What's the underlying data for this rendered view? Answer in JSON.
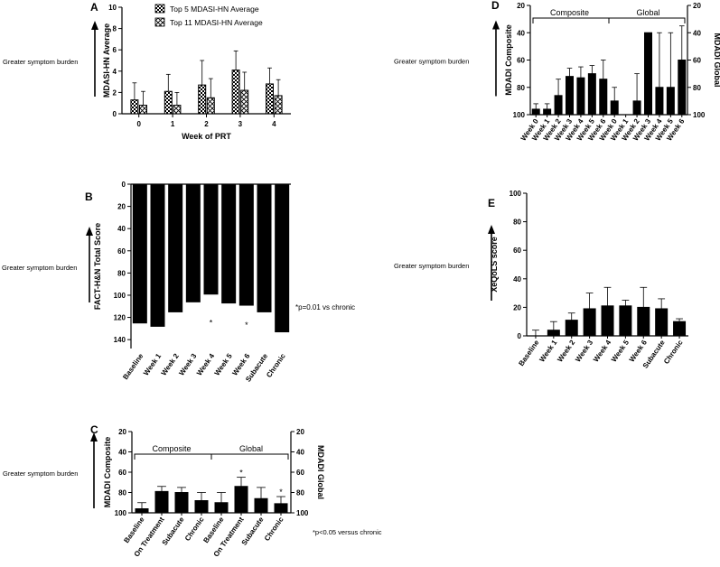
{
  "side_label": "Greater symptom burden",
  "chart_data": [
    {
      "id": "A",
      "type": "bar",
      "panel_letter": "A",
      "title": "",
      "xlabel": "Week of PRT",
      "ylabel": "MDASI-HN Average",
      "categories": [
        "0",
        "1",
        "2",
        "3",
        "4"
      ],
      "ylim": [
        0,
        10
      ],
      "yticks": [
        0,
        2,
        4,
        6,
        8,
        10
      ],
      "series": [
        {
          "name": "Top 5 MDASI-HN Average",
          "pattern": "checker",
          "values": [
            1.3,
            2.1,
            2.7,
            4.1,
            2.8
          ],
          "err": [
            1.6,
            1.6,
            2.3,
            1.8,
            1.5
          ]
        },
        {
          "name": "Top 11 MDASI-HN Average",
          "pattern": "xcross",
          "values": [
            0.8,
            0.8,
            1.5,
            2.2,
            1.7
          ],
          "err": [
            1.3,
            1.2,
            1.8,
            1.7,
            1.5
          ]
        }
      ],
      "legend": "top"
    },
    {
      "id": "B",
      "type": "bar",
      "panel_letter": "B",
      "ylabel": "FACT-H&N Total Score",
      "xlabel": "",
      "categories": [
        "Baseline",
        "Week 1",
        "Week 2",
        "Week 3",
        "Week 4",
        "Week 5",
        "Week 6",
        "Subacute",
        "Chronic"
      ],
      "values": [
        125,
        128,
        115,
        106,
        99,
        107,
        109,
        115,
        133
      ],
      "err": [
        11,
        4,
        20,
        17,
        21,
        19,
        13,
        11,
        4
      ],
      "ylim": [
        0,
        148
      ],
      "yticks": [
        0,
        20,
        40,
        60,
        80,
        100,
        120,
        140
      ],
      "inverted": true,
      "significant_marks": [
        "Week 4",
        "Week 6"
      ],
      "sig_symbol": "*",
      "annotation": "*p=0.01 vs chronic"
    },
    {
      "id": "C",
      "type": "bar",
      "panel_letter": "C",
      "ylabel": "MDADI Composite",
      "ylabel_right": "MDADI Global",
      "categories": [
        "Baseline",
        "On Treatment",
        "Subacute",
        "Chronic",
        "Baseline",
        "On Treatment",
        "Subacute",
        "Chronic"
      ],
      "values": [
        96,
        79,
        80,
        88,
        90,
        74,
        86,
        91
      ],
      "err": [
        6,
        5,
        5,
        8,
        10,
        9,
        11,
        7
      ],
      "ylim": [
        20,
        100
      ],
      "yticks": [
        20,
        40,
        60,
        80,
        100
      ],
      "inverted": true,
      "group_labels": [
        "Composite",
        "Global"
      ],
      "significant_marks": [
        5,
        7
      ],
      "sig_symbol": "*",
      "annotation": "*p<0.05 versus chronic"
    },
    {
      "id": "D",
      "type": "bar",
      "panel_letter": "D",
      "ylabel": "MDADI Composite",
      "ylabel_right": "MDADI Global",
      "categories": [
        "Week 0",
        "Week 1",
        "Week 2",
        "Week 3",
        "Week 4",
        "Week 5",
        "Week 6",
        "Week 0",
        "Week 1",
        "Week 2",
        "Week 3",
        "Week 4",
        "Week 5",
        "Week 6"
      ],
      "values": [
        96,
        96,
        86,
        72,
        73,
        70,
        74,
        90,
        100,
        90,
        40,
        80,
        80,
        60
      ],
      "err": [
        4,
        4,
        12,
        6,
        8,
        6,
        14,
        10,
        0,
        20,
        0,
        40,
        40,
        25
      ],
      "ylim": [
        20,
        100
      ],
      "yticks": [
        20,
        40,
        60,
        80,
        100
      ],
      "inverted": true,
      "group_labels": [
        "Composite",
        "Global"
      ]
    },
    {
      "id": "E",
      "type": "bar",
      "panel_letter": "E",
      "ylabel": "XeQoLS score",
      "categories": [
        "Baseline",
        "Week 1",
        "Week 2",
        "Week 3",
        "Week 4",
        "Week 5",
        "Week 6",
        "Subacute",
        "Chronic"
      ],
      "values": [
        0,
        4,
        11,
        19,
        21,
        21,
        20,
        19,
        10
      ],
      "err": [
        4,
        6,
        5,
        11,
        13,
        4,
        14,
        7,
        2
      ],
      "ylim": [
        0,
        100
      ],
      "yticks": [
        0,
        20,
        40,
        60,
        80,
        100
      ]
    }
  ]
}
